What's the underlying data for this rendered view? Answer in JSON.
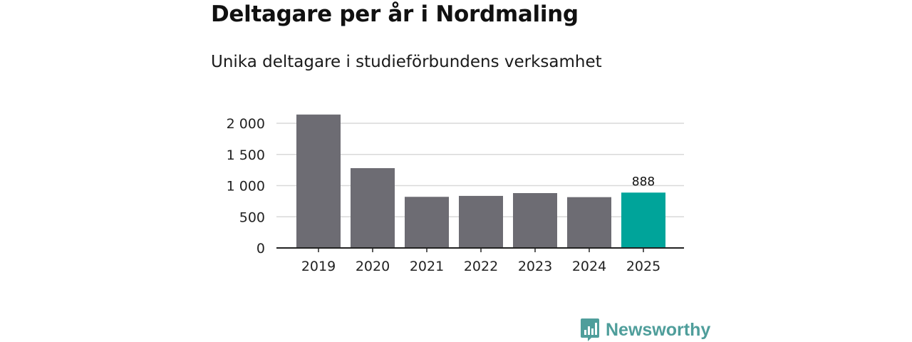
{
  "chart_data": {
    "type": "bar",
    "title": "Deltagare per år i Nordmaling",
    "subtitle": "Unika deltagare i studieförbundens verksamhet",
    "categories": [
      "2019",
      "2020",
      "2021",
      "2022",
      "2023",
      "2024",
      "2025"
    ],
    "values": [
      2140,
      1280,
      820,
      835,
      880,
      815,
      888
    ],
    "highlight_index": 6,
    "data_labels": [
      {
        "index": 6,
        "text": "888"
      }
    ],
    "yticks": [
      0,
      500,
      1000,
      1500,
      2000
    ],
    "ytick_labels": [
      "0",
      "500",
      "1 000",
      "1 500",
      "2 000"
    ],
    "ylim": [
      0,
      2000
    ],
    "xlabel": "",
    "ylabel": "",
    "grid": true,
    "colors": {
      "bar": "#6d6c73",
      "highlight": "#00a49a",
      "grid": "#d9d9d9",
      "axis": "#222222"
    }
  },
  "brand": {
    "name": "Newsworthy",
    "icon": "bar-chart-speech-bubble-icon",
    "color": "#4f9e9b"
  }
}
